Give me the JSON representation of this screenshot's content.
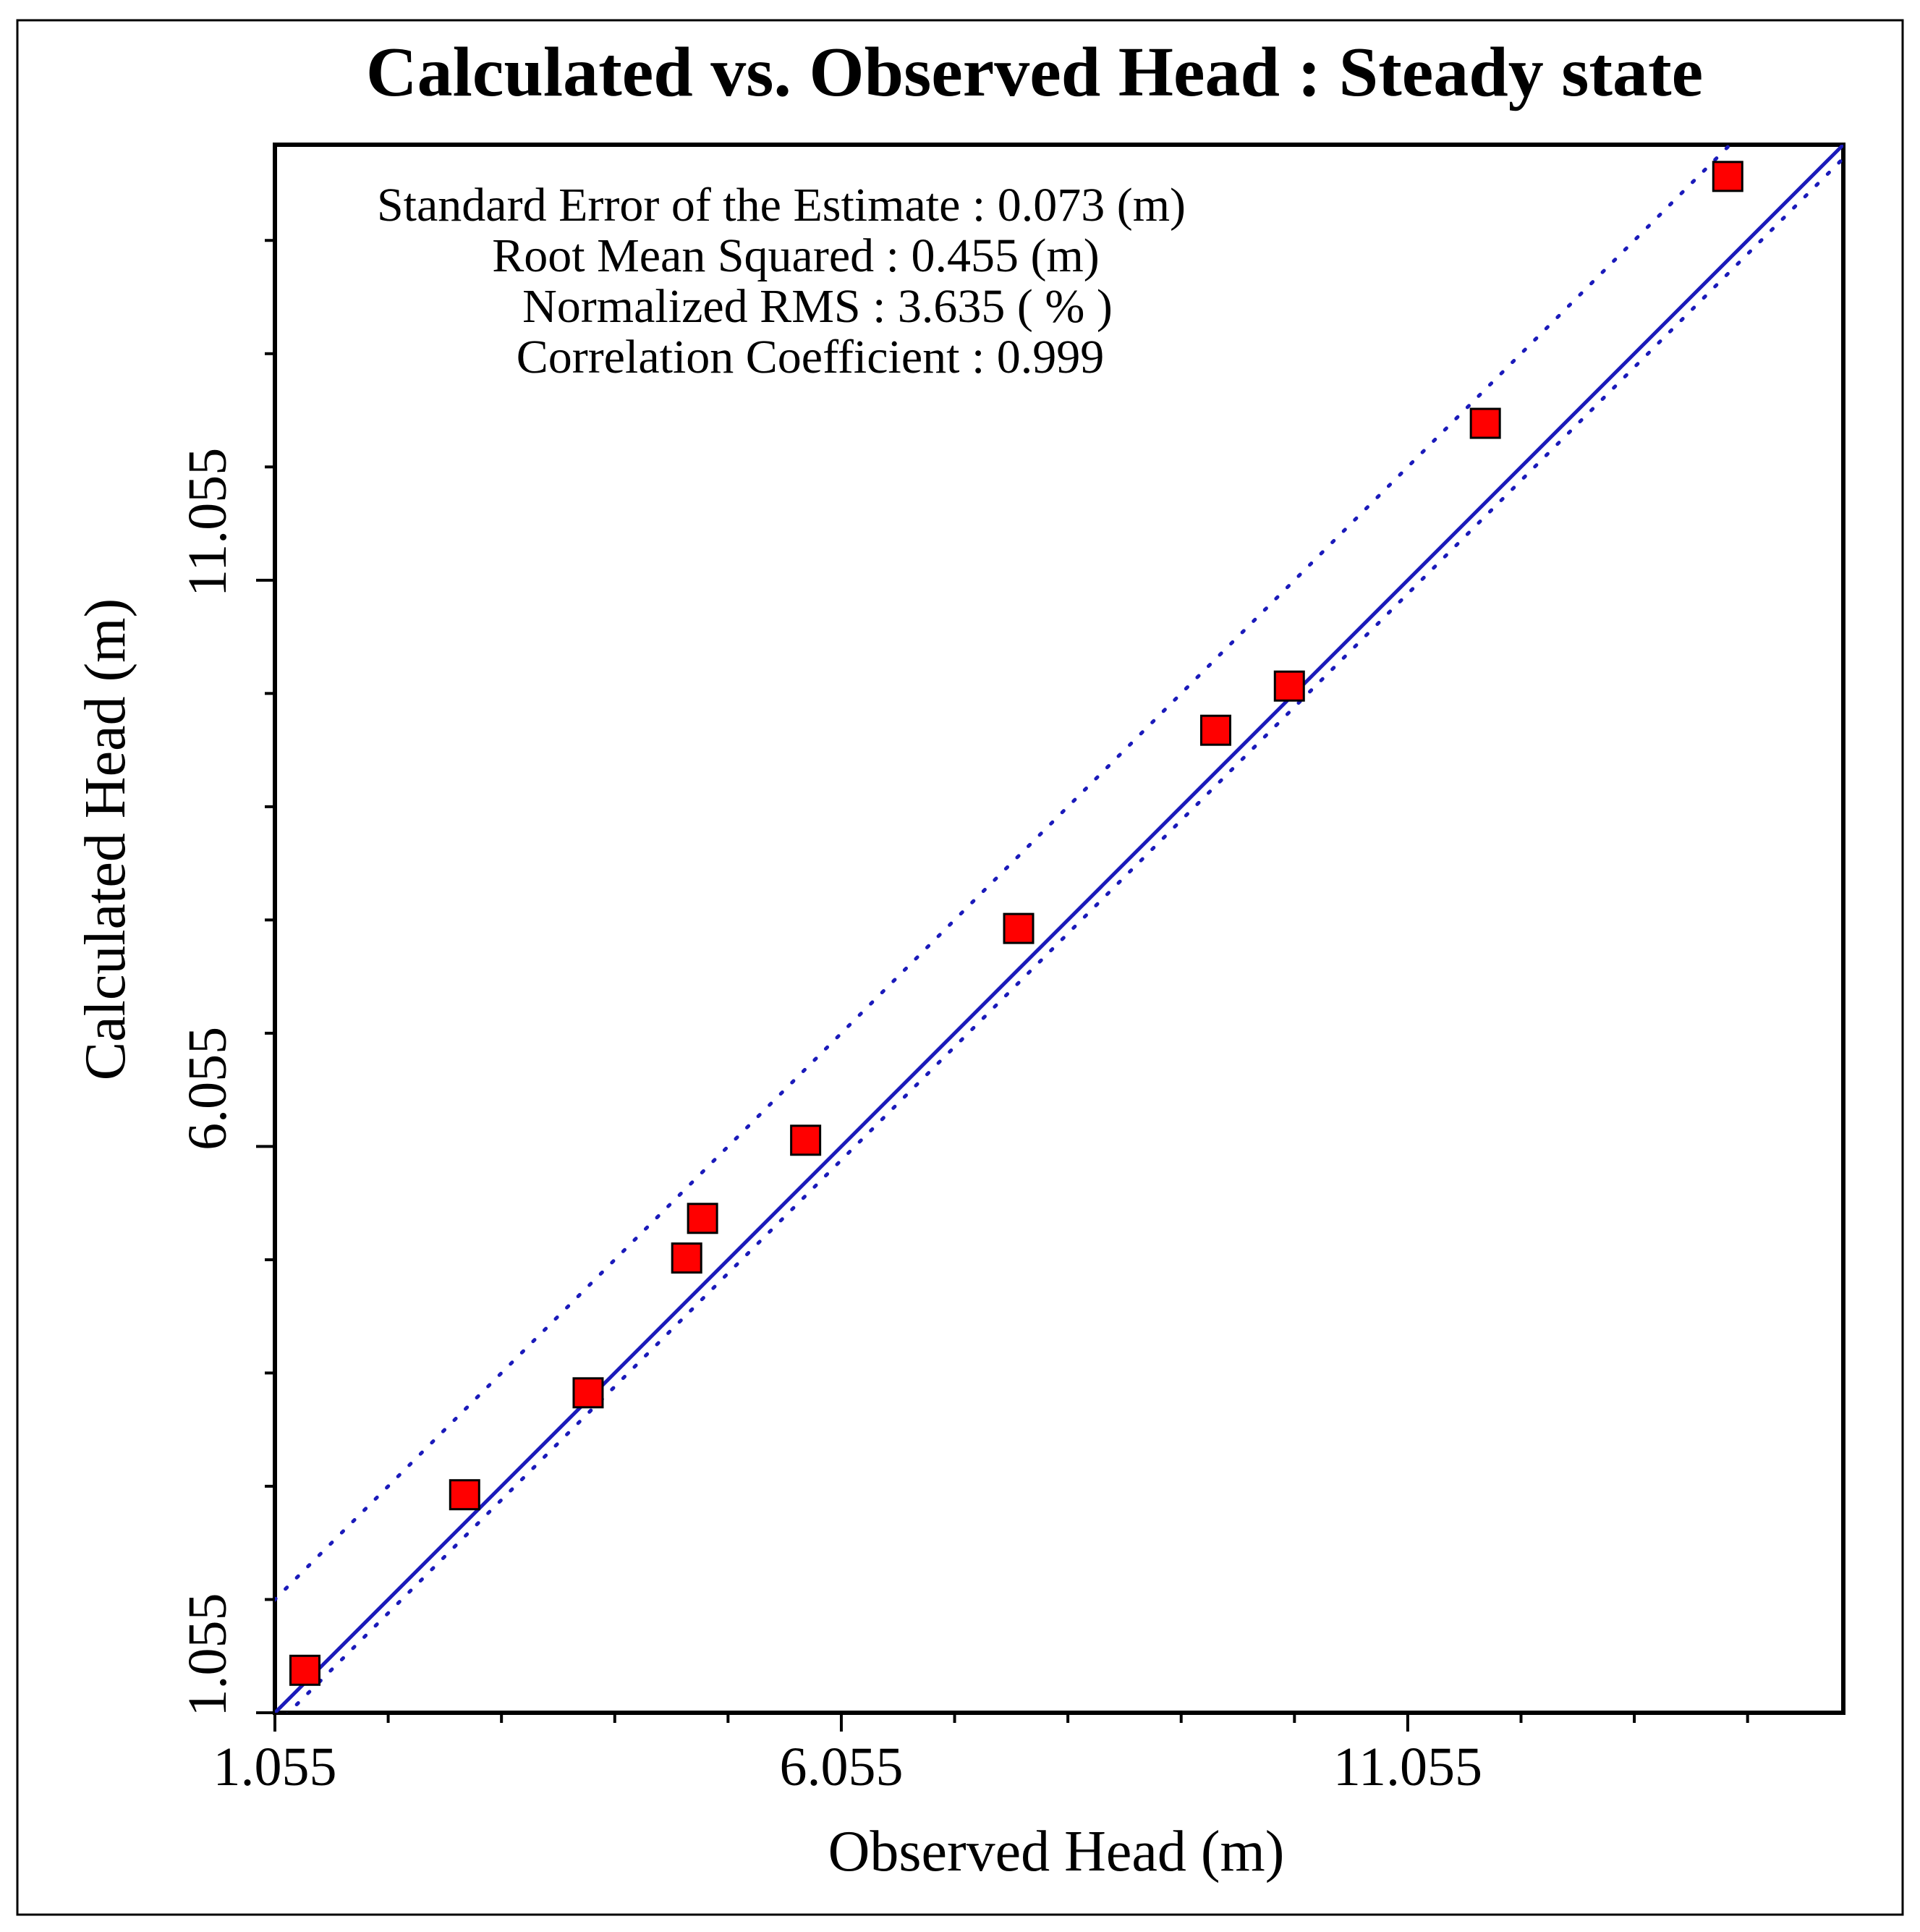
{
  "chart_data": {
    "type": "scatter",
    "title": "Calculated vs. Observed Head : Steady state",
    "xlabel": "Observed Head (m)",
    "ylabel": "Calculated Head (m)",
    "xlim": [
      1.055,
      14.9
    ],
    "ylim": [
      1.055,
      14.9
    ],
    "xticks": [
      {
        "value": 1.055,
        "label": "1.055"
      },
      {
        "value": 6.055,
        "label": "6.055"
      },
      {
        "value": 11.055,
        "label": "11.055"
      }
    ],
    "yticks": [
      {
        "value": 1.055,
        "label": "1.055"
      },
      {
        "value": 6.055,
        "label": "6.055"
      },
      {
        "value": 11.055,
        "label": "11.055"
      }
    ],
    "minor_tick_step": 1.0,
    "stats": [
      "Standard Error of the Estimate : 0.073 (m)",
      "Root Mean Squared : 0.455 (m)",
      "Normalized RMS : 3.635 ( % )",
      "Correlation Coefficient : 0.999"
    ],
    "reference_lines": {
      "identity": {
        "slope": 1,
        "intercept": 0,
        "style": "solid"
      },
      "upper_bound": {
        "slope": 1,
        "intercept": 1.0,
        "style": "dotted"
      },
      "lower_bound": {
        "slope": 1,
        "intercept": -0.12,
        "style": "dotted"
      }
    },
    "points": [
      {
        "x": 1.32,
        "y": 1.43
      },
      {
        "x": 2.73,
        "y": 2.98
      },
      {
        "x": 3.82,
        "y": 3.88
      },
      {
        "x": 4.69,
        "y": 5.07
      },
      {
        "x": 4.83,
        "y": 5.42
      },
      {
        "x": 5.74,
        "y": 6.11
      },
      {
        "x": 7.62,
        "y": 7.98
      },
      {
        "x": 9.36,
        "y": 9.73
      },
      {
        "x": 10.01,
        "y": 10.12
      },
      {
        "x": 11.74,
        "y": 12.44
      },
      {
        "x": 13.88,
        "y": 14.62
      }
    ],
    "colors": {
      "line": "#1a1aba",
      "marker_fill": "#ff0000",
      "marker_edge": "#000000",
      "text": "#000000"
    }
  }
}
